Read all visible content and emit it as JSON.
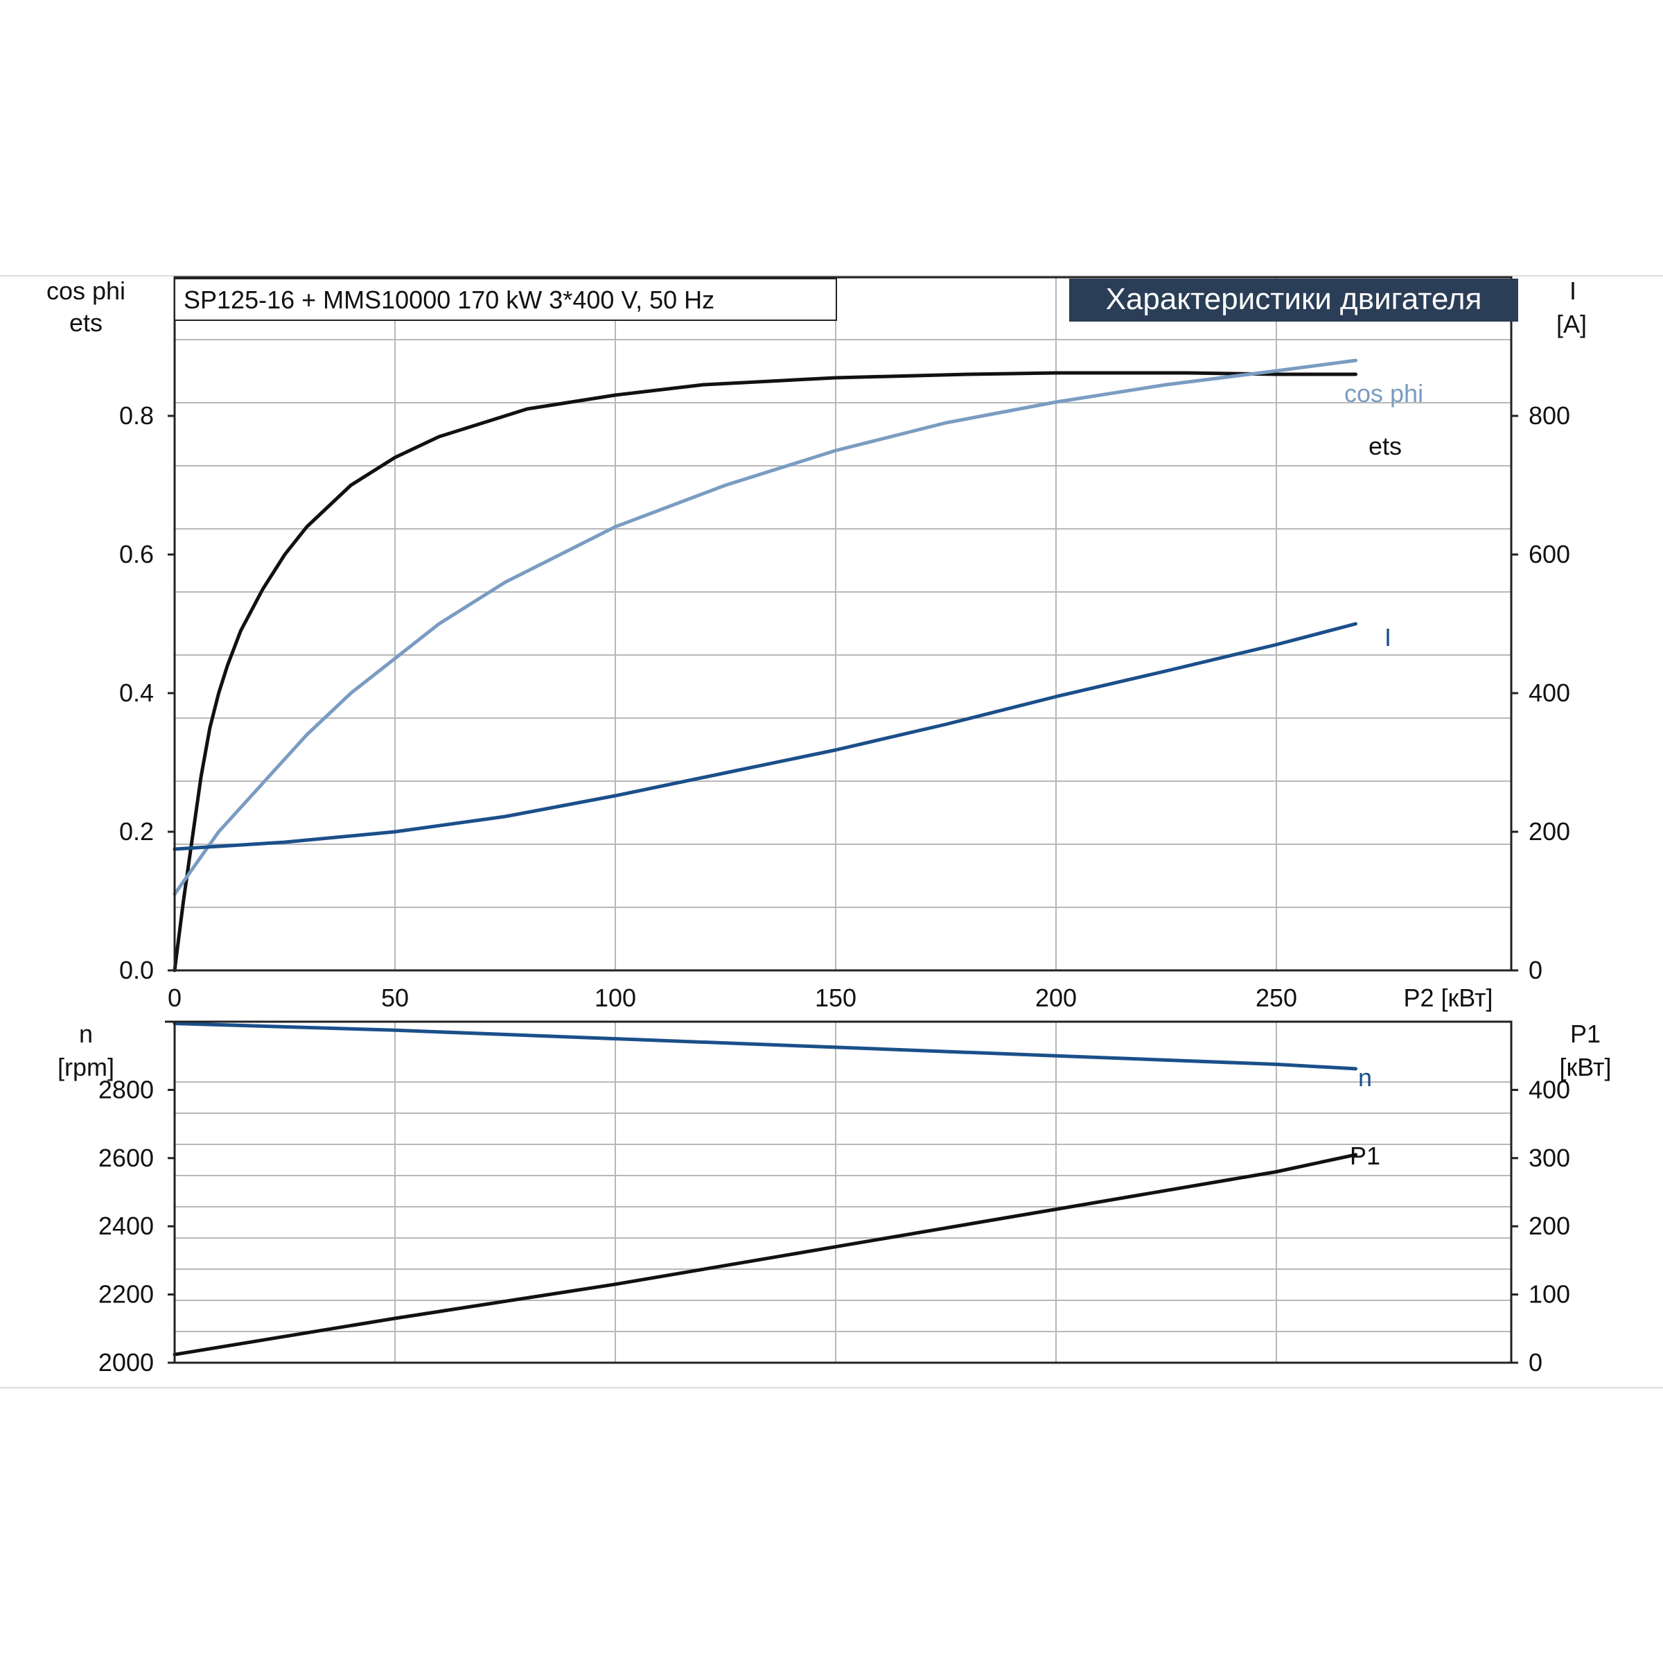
{
  "chart_data": [
    {
      "type": "line",
      "title": "SP125-16 + MMS10000   170 kW   3*400 V, 50 Hz",
      "badge": "Характеристики двигателя",
      "xlabel": "P2 [кВт]",
      "xlim": [
        0,
        300
      ],
      "x_ticks": [
        0,
        50,
        100,
        150,
        200,
        250
      ],
      "y_left": {
        "label_line1": "cos phi",
        "label_line2": "ets",
        "ylim": [
          0,
          1.0
        ],
        "ticks": [
          "0.0",
          "0.2",
          "0.4",
          "0.6",
          "0.8"
        ],
        "tick_values": [
          0,
          0.2,
          0.4,
          0.6,
          0.8
        ]
      },
      "y_right": {
        "label_line1": "I",
        "label_line2": "[A]",
        "ylim": [
          0,
          1000
        ],
        "ticks": [
          "0",
          "200",
          "400",
          "600",
          "800"
        ],
        "tick_values": [
          0,
          200,
          400,
          600,
          800
        ]
      },
      "grid": true,
      "series": [
        {
          "name": "ets",
          "axis": "left",
          "color": "#111111",
          "x": [
            0,
            2,
            4,
            6,
            8,
            10,
            12,
            15,
            20,
            25,
            30,
            35,
            40,
            50,
            60,
            70,
            80,
            100,
            120,
            150,
            180,
            200,
            230,
            250,
            268
          ],
          "y": [
            0.0,
            0.1,
            0.19,
            0.28,
            0.35,
            0.4,
            0.44,
            0.49,
            0.55,
            0.6,
            0.64,
            0.67,
            0.7,
            0.74,
            0.77,
            0.79,
            0.81,
            0.83,
            0.845,
            0.855,
            0.86,
            0.862,
            0.862,
            0.86,
            0.86
          ]
        },
        {
          "name": "cos phi",
          "axis": "left",
          "color": "#7a9cc2",
          "x": [
            0,
            10,
            20,
            30,
            40,
            50,
            60,
            75,
            100,
            125,
            150,
            175,
            200,
            225,
            250,
            268
          ],
          "y": [
            0.11,
            0.2,
            0.27,
            0.34,
            0.4,
            0.45,
            0.5,
            0.56,
            0.64,
            0.7,
            0.75,
            0.79,
            0.82,
            0.845,
            0.865,
            0.88
          ]
        },
        {
          "name": "I",
          "axis": "right",
          "color": "#1b4f8a",
          "x": [
            0,
            25,
            50,
            75,
            100,
            125,
            150,
            175,
            200,
            225,
            250,
            268
          ],
          "y": [
            175,
            185,
            200,
            222,
            252,
            285,
            318,
            355,
            395,
            432,
            470,
            500
          ]
        }
      ]
    },
    {
      "type": "line",
      "xlim": [
        0,
        300
      ],
      "y_left": {
        "label_line1": "n",
        "label_line2": "[rpm]",
        "ylim": [
          2000,
          3000
        ],
        "ticks": [
          "2000",
          "2200",
          "2400",
          "2600",
          "2800"
        ],
        "tick_values": [
          2000,
          2200,
          2400,
          2600,
          2800
        ]
      },
      "y_right": {
        "label_line1": "P1",
        "label_line2": "[кВт]",
        "ylim": [
          0,
          500
        ],
        "ticks": [
          "0",
          "100",
          "200",
          "300",
          "400"
        ],
        "tick_values": [
          0,
          100,
          200,
          300,
          400
        ]
      },
      "grid": true,
      "series": [
        {
          "name": "n",
          "axis": "left",
          "color": "#1b4f8a",
          "x": [
            0,
            50,
            100,
            150,
            200,
            250,
            268
          ],
          "y": [
            2995,
            2975,
            2950,
            2925,
            2900,
            2875,
            2862
          ]
        },
        {
          "name": "P1",
          "axis": "right",
          "color": "#111111",
          "x": [
            0,
            50,
            100,
            150,
            200,
            250,
            268
          ],
          "y": [
            12,
            65,
            115,
            170,
            225,
            280,
            305
          ]
        }
      ]
    }
  ]
}
